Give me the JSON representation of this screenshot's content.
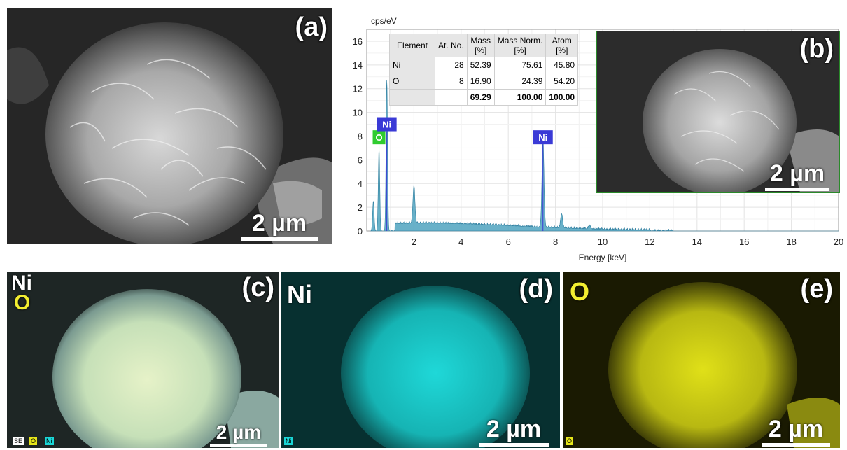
{
  "panels": {
    "a": {
      "label": "(a)",
      "scalebar": "2 µm"
    },
    "b": {
      "label": "(b)",
      "scalebar": "2 µm"
    },
    "c": {
      "label": "(c)",
      "scalebar": "2 µm",
      "elements": [
        "Ni",
        "O"
      ],
      "legend": [
        "SE",
        "O",
        "Ni"
      ]
    },
    "d": {
      "label": "(d)",
      "scalebar": "2 µm",
      "element": "Ni",
      "legend": "Ni",
      "color": "#1ad6d6"
    },
    "e": {
      "label": "(e)",
      "scalebar": "2 µm",
      "element": "O",
      "legend": "O",
      "color": "#e6e61a"
    }
  },
  "eds_table": {
    "headers": [
      [
        "Element"
      ],
      [
        "At. No."
      ],
      [
        "Mass",
        "[%]"
      ],
      [
        "Mass Norm.",
        "[%]"
      ],
      [
        "Atom",
        "[%]"
      ]
    ],
    "rows": [
      [
        "Ni",
        "28",
        "52.39",
        "75.61",
        "45.80"
      ],
      [
        "O",
        "8",
        "16.90",
        "24.39",
        "54.20"
      ]
    ],
    "total": [
      "",
      "",
      "69.29",
      "100.00",
      "100.00"
    ]
  },
  "chart_data": {
    "type": "area",
    "ylabel": "cps/eV",
    "xlabel": "Energy [keV]",
    "xlim": [
      0,
      20
    ],
    "ylim": [
      0,
      17
    ],
    "xticks": [
      2,
      4,
      6,
      8,
      10,
      12,
      14,
      16,
      18,
      20
    ],
    "yticks": [
      0,
      2,
      4,
      6,
      8,
      10,
      12,
      14,
      16
    ],
    "grid": true,
    "peaks": [
      {
        "x": 0.28,
        "y": 2.5
      },
      {
        "x": 0.52,
        "y": 6.9
      },
      {
        "x": 0.85,
        "y": 12.7
      },
      {
        "x": 2.0,
        "y": 3.2
      },
      {
        "x": 7.47,
        "y": 7.5
      },
      {
        "x": 8.26,
        "y": 1.2
      },
      {
        "x": 9.45,
        "y": 0.3
      }
    ],
    "background_level": 0.6,
    "peak_labels": [
      {
        "text": "O",
        "x": 0.52,
        "y": 7.9,
        "color": "#2fcc2f"
      },
      {
        "text": "Ni",
        "x": 0.85,
        "y": 9.0,
        "color": "#3a3ad6"
      },
      {
        "text": "Ni",
        "x": 7.47,
        "y": 7.9,
        "color": "#3a3ad6"
      }
    ],
    "series_color": "#4fa3c0"
  }
}
